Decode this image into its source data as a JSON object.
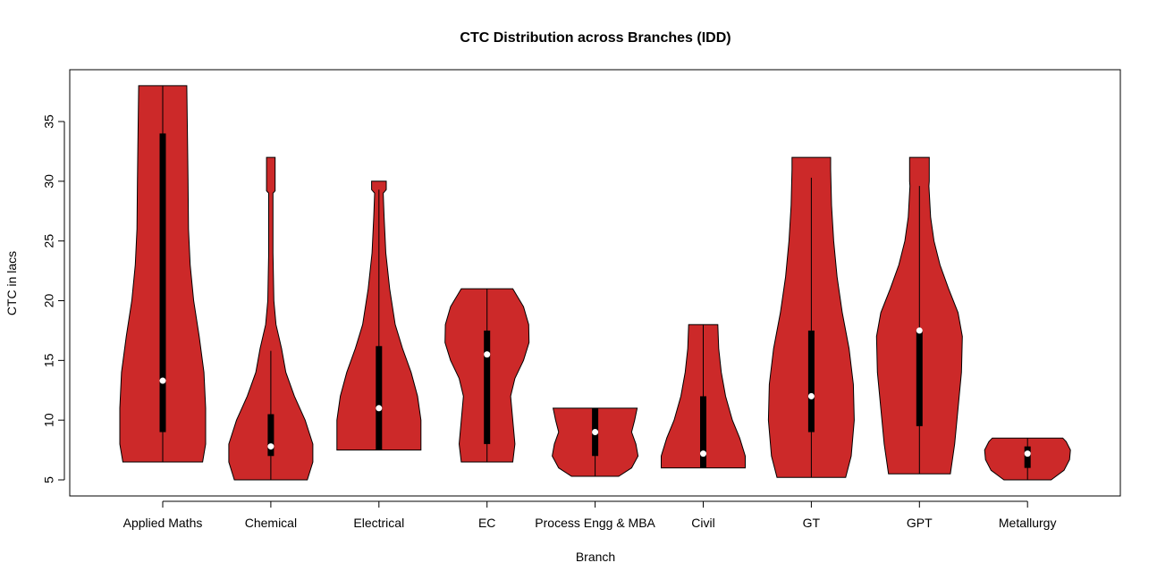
{
  "chart_data": {
    "type": "violin",
    "title": "CTC Distribution across Branches (IDD)",
    "xlabel": "Branch",
    "ylabel": "CTC in lacs",
    "ylim": [
      3.6,
      39.4
    ],
    "yticks": [
      5,
      10,
      15,
      20,
      25,
      30,
      35
    ],
    "grid": false,
    "fill_color": "#CC2929",
    "categories": [
      "Applied Maths",
      "Chemical",
      "Electrical",
      "EC",
      "Process Engg & MBA",
      "Civil",
      "GT",
      "GPT",
      "Metallurgy"
    ],
    "violins": [
      {
        "min": 6.5,
        "max": 38,
        "q1": 9,
        "median": 13.3,
        "q3": 34,
        "whisker_low": 6.5,
        "whisker_high": 38,
        "density": [
          [
            6.5,
            0.93
          ],
          [
            8,
            1.0
          ],
          [
            11,
            1.0
          ],
          [
            14,
            0.96
          ],
          [
            17,
            0.85
          ],
          [
            20,
            0.72
          ],
          [
            23,
            0.64
          ],
          [
            26,
            0.6
          ],
          [
            30,
            0.59
          ],
          [
            33,
            0.58
          ],
          [
            38,
            0.56
          ]
        ]
      },
      {
        "min": 5,
        "max": 32,
        "q1": 7,
        "median": 7.8,
        "q3": 10.5,
        "whisker_low": 5,
        "whisker_high": 15.8,
        "density": [
          [
            5,
            0.85
          ],
          [
            6.5,
            0.98
          ],
          [
            8,
            0.98
          ],
          [
            10,
            0.8
          ],
          [
            12,
            0.55
          ],
          [
            14,
            0.35
          ],
          [
            16,
            0.25
          ],
          [
            18,
            0.12
          ],
          [
            20,
            0.07
          ],
          [
            24,
            0.05
          ],
          [
            29,
            0.05
          ],
          [
            29.2,
            0.1
          ],
          [
            32,
            0.1
          ]
        ]
      },
      {
        "min": 7.5,
        "max": 30,
        "q1": 7.5,
        "median": 11,
        "q3": 16.2,
        "whisker_low": 7.5,
        "whisker_high": 29.3,
        "density": [
          [
            7.5,
            0.98
          ],
          [
            10,
            0.98
          ],
          [
            12,
            0.9
          ],
          [
            14,
            0.75
          ],
          [
            16,
            0.55
          ],
          [
            18,
            0.38
          ],
          [
            21,
            0.25
          ],
          [
            24,
            0.16
          ],
          [
            27,
            0.12
          ],
          [
            29,
            0.1
          ],
          [
            29.3,
            0.17
          ],
          [
            30,
            0.17
          ]
        ]
      },
      {
        "min": 6.5,
        "max": 21,
        "q1": 8,
        "median": 15.5,
        "q3": 17.5,
        "whisker_low": 6.5,
        "whisker_high": 21,
        "density": [
          [
            6.5,
            0.6
          ],
          [
            8,
            0.65
          ],
          [
            10,
            0.6
          ],
          [
            12,
            0.55
          ],
          [
            13.5,
            0.65
          ],
          [
            15,
            0.85
          ],
          [
            16.5,
            0.98
          ],
          [
            18,
            0.97
          ],
          [
            19.5,
            0.85
          ],
          [
            21,
            0.6
          ]
        ]
      },
      {
        "min": 5.3,
        "max": 11,
        "q1": 7,
        "median": 9,
        "q3": 11,
        "whisker_low": 5.3,
        "whisker_high": 11,
        "density": [
          [
            5.3,
            0.55
          ],
          [
            6,
            0.85
          ],
          [
            7,
            1.0
          ],
          [
            8,
            0.95
          ],
          [
            9,
            0.85
          ],
          [
            10,
            0.92
          ],
          [
            11,
            0.98
          ]
        ]
      },
      {
        "min": 6,
        "max": 18,
        "q1": 6,
        "median": 7.2,
        "q3": 12,
        "whisker_low": 6,
        "whisker_high": 18,
        "density": [
          [
            6,
            0.98
          ],
          [
            7,
            0.98
          ],
          [
            8.5,
            0.85
          ],
          [
            10,
            0.68
          ],
          [
            12,
            0.52
          ],
          [
            14,
            0.42
          ],
          [
            16,
            0.36
          ],
          [
            18,
            0.34
          ]
        ]
      },
      {
        "min": 5.2,
        "max": 32,
        "q1": 9,
        "median": 12,
        "q3": 17.5,
        "whisker_low": 5.2,
        "whisker_high": 30.3,
        "density": [
          [
            5.2,
            0.8
          ],
          [
            7,
            0.93
          ],
          [
            10,
            1.0
          ],
          [
            13,
            0.98
          ],
          [
            16,
            0.88
          ],
          [
            19,
            0.72
          ],
          [
            22,
            0.6
          ],
          [
            25,
            0.52
          ],
          [
            28,
            0.47
          ],
          [
            31,
            0.45
          ],
          [
            32,
            0.45
          ]
        ]
      },
      {
        "min": 5.5,
        "max": 32,
        "q1": 9.5,
        "median": 17.5,
        "q3": 17.5,
        "whisker_low": 5.5,
        "whisker_high": 29.6,
        "density": [
          [
            5.5,
            0.72
          ],
          [
            8,
            0.82
          ],
          [
            11,
            0.9
          ],
          [
            14,
            0.98
          ],
          [
            17,
            1.0
          ],
          [
            19,
            0.9
          ],
          [
            21,
            0.68
          ],
          [
            23,
            0.48
          ],
          [
            25,
            0.34
          ],
          [
            27,
            0.26
          ],
          [
            29.6,
            0.22
          ],
          [
            30,
            0.23
          ],
          [
            32,
            0.23
          ]
        ]
      },
      {
        "min": 5,
        "max": 8.5,
        "q1": 6,
        "median": 7.2,
        "q3": 7.8,
        "whisker_low": 5,
        "whisker_high": 8.5,
        "density": [
          [
            5,
            0.55
          ],
          [
            5.8,
            0.85
          ],
          [
            6.7,
            0.98
          ],
          [
            7.5,
            1.0
          ],
          [
            8.2,
            0.9
          ],
          [
            8.5,
            0.82
          ]
        ]
      }
    ]
  }
}
